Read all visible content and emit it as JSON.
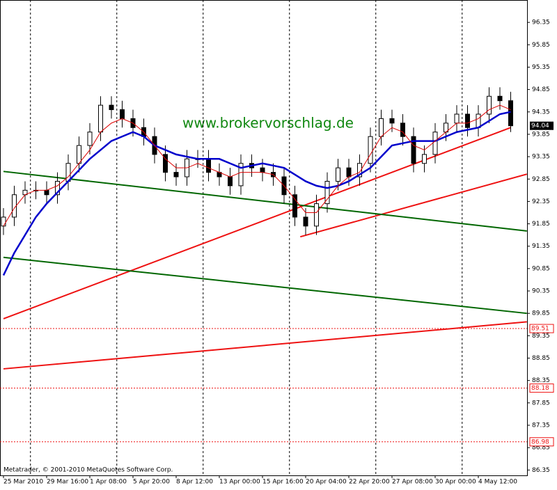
{
  "chart_data": {
    "type": "candlestick",
    "watermark": "www.brokervorschlag.de",
    "footer": "Metatrader, © 2001-2010 MetaQuotes Software Corp.",
    "categories": [
      "25 Mar 2010",
      null,
      null,
      null,
      "29 Mar 16:00",
      null,
      null,
      null,
      "1 Apr 08:00",
      null,
      null,
      null,
      "5 Apr 20:00",
      null,
      null,
      null,
      "8 Apr 12:00",
      null,
      null,
      null,
      "13 Apr 00:00",
      null,
      null,
      null,
      "15 Apr 16:00",
      null,
      null,
      null,
      "20 Apr 04:00",
      null,
      null,
      null,
      "22 Apr 20:00",
      null,
      null,
      null,
      "27 Apr 08:00",
      null,
      null,
      null,
      "30 Apr 00:00",
      null,
      null,
      null,
      "4 May 12:00",
      null,
      null,
      null
    ],
    "open": [
      91.8,
      92.0,
      92.5,
      92.6,
      92.6,
      92.5,
      92.8,
      93.2,
      93.6,
      93.9,
      94.5,
      94.4,
      94.2,
      94.0,
      93.8,
      93.4,
      93.0,
      92.9,
      93.3,
      93.3,
      93.0,
      92.9,
      92.7,
      93.2,
      93.1,
      93.0,
      92.9,
      92.5,
      92.0,
      91.8,
      92.3,
      92.8,
      93.1,
      92.9,
      93.2,
      93.8,
      94.2,
      94.1,
      93.8,
      93.2,
      93.4,
      93.9,
      94.1,
      94.3,
      94.0,
      94.3,
      94.7,
      94.6
    ],
    "high": [
      92.2,
      92.7,
      92.8,
      92.8,
      92.8,
      93.0,
      93.4,
      93.8,
      94.1,
      94.7,
      94.7,
      94.6,
      94.4,
      94.2,
      94.0,
      93.6,
      93.2,
      93.5,
      93.5,
      93.5,
      93.2,
      93.1,
      93.4,
      93.4,
      93.3,
      93.2,
      93.1,
      92.7,
      92.2,
      92.5,
      93.0,
      93.3,
      93.3,
      93.4,
      94.0,
      94.4,
      94.4,
      94.3,
      94.0,
      93.6,
      94.1,
      94.3,
      94.5,
      94.5,
      94.5,
      94.9,
      94.9,
      94.8
    ],
    "low": [
      91.6,
      91.8,
      92.3,
      92.4,
      92.3,
      92.3,
      92.6,
      93.0,
      93.4,
      93.7,
      94.2,
      94.0,
      93.8,
      93.6,
      93.2,
      92.8,
      92.7,
      92.7,
      93.1,
      92.8,
      92.7,
      92.5,
      92.5,
      92.9,
      92.8,
      92.7,
      92.3,
      91.8,
      91.6,
      91.6,
      92.1,
      92.6,
      92.7,
      92.7,
      93.0,
      93.6,
      93.9,
      93.6,
      93.0,
      93.0,
      93.2,
      93.7,
      93.9,
      93.8,
      93.8,
      94.1,
      94.4,
      93.9
    ],
    "close": [
      92.0,
      92.5,
      92.6,
      92.6,
      92.5,
      92.8,
      93.2,
      93.6,
      93.9,
      94.5,
      94.4,
      94.2,
      94.0,
      93.8,
      93.4,
      93.0,
      92.9,
      93.3,
      93.3,
      93.0,
      92.9,
      92.7,
      93.2,
      93.1,
      93.0,
      92.9,
      92.5,
      92.0,
      91.8,
      92.3,
      92.8,
      93.1,
      92.9,
      93.2,
      93.8,
      94.2,
      94.1,
      93.8,
      93.2,
      93.4,
      93.9,
      94.1,
      94.3,
      94.0,
      94.3,
      94.7,
      94.6,
      94.04
    ],
    "series": [
      {
        "color": "#0000cc",
        "values": [
          90.7,
          91.2,
          91.6,
          92.0,
          92.3,
          92.55,
          92.8,
          93.05,
          93.3,
          93.5,
          93.7,
          93.8,
          93.9,
          93.8,
          93.6,
          93.5,
          93.4,
          93.35,
          93.3,
          93.3,
          93.3,
          93.2,
          93.1,
          93.15,
          93.2,
          93.15,
          93.1,
          92.95,
          92.8,
          92.7,
          92.65,
          92.7,
          92.8,
          92.95,
          93.1,
          93.35,
          93.6,
          93.65,
          93.7,
          93.7,
          93.7,
          93.8,
          93.9,
          93.95,
          94.0,
          94.15,
          94.3,
          94.35
        ]
      },
      {
        "color": "#dd0000",
        "values": [
          91.8,
          92.2,
          92.5,
          92.6,
          92.6,
          92.7,
          92.9,
          93.2,
          93.5,
          93.9,
          94.1,
          94.2,
          94.1,
          93.9,
          93.6,
          93.3,
          93.1,
          93.1,
          93.2,
          93.1,
          93.0,
          92.9,
          93.0,
          93.0,
          93.0,
          92.95,
          92.7,
          92.4,
          92.1,
          92.1,
          92.4,
          92.7,
          92.9,
          93.0,
          93.4,
          93.8,
          94.0,
          93.9,
          93.6,
          93.5,
          93.7,
          93.9,
          94.1,
          94.1,
          94.2,
          94.4,
          94.5,
          94.4
        ]
      }
    ],
    "trend_lines": [
      {
        "color": "#ee1111",
        "x": [
          0,
          47
        ],
        "values": [
          89.73,
          94.0
        ]
      },
      {
        "color": "#ee1111",
        "x": [
          27.5,
          48.5
        ],
        "values": [
          91.56,
          92.96
        ]
      },
      {
        "color": "#ee1111",
        "x": [
          0,
          48.5
        ],
        "values": [
          88.61,
          89.66
        ]
      },
      {
        "color": "#006600",
        "x": [
          0,
          48.5
        ],
        "values": [
          93.02,
          91.69
        ]
      },
      {
        "color": "#006600",
        "x": [
          0,
          48.5
        ],
        "values": [
          91.1,
          89.85
        ]
      }
    ],
    "levels": [
      89.51,
      88.18,
      86.98
    ],
    "level_color": "#ee1111",
    "last_price": 94.04,
    "ylim": [
      86.23,
      96.85
    ],
    "yticks": [
      86.35,
      86.85,
      87.35,
      87.85,
      88.35,
      88.85,
      89.35,
      89.85,
      90.35,
      90.85,
      91.35,
      91.85,
      92.35,
      92.85,
      93.35,
      93.85,
      94.35,
      94.85,
      95.35,
      95.85,
      96.35
    ]
  }
}
